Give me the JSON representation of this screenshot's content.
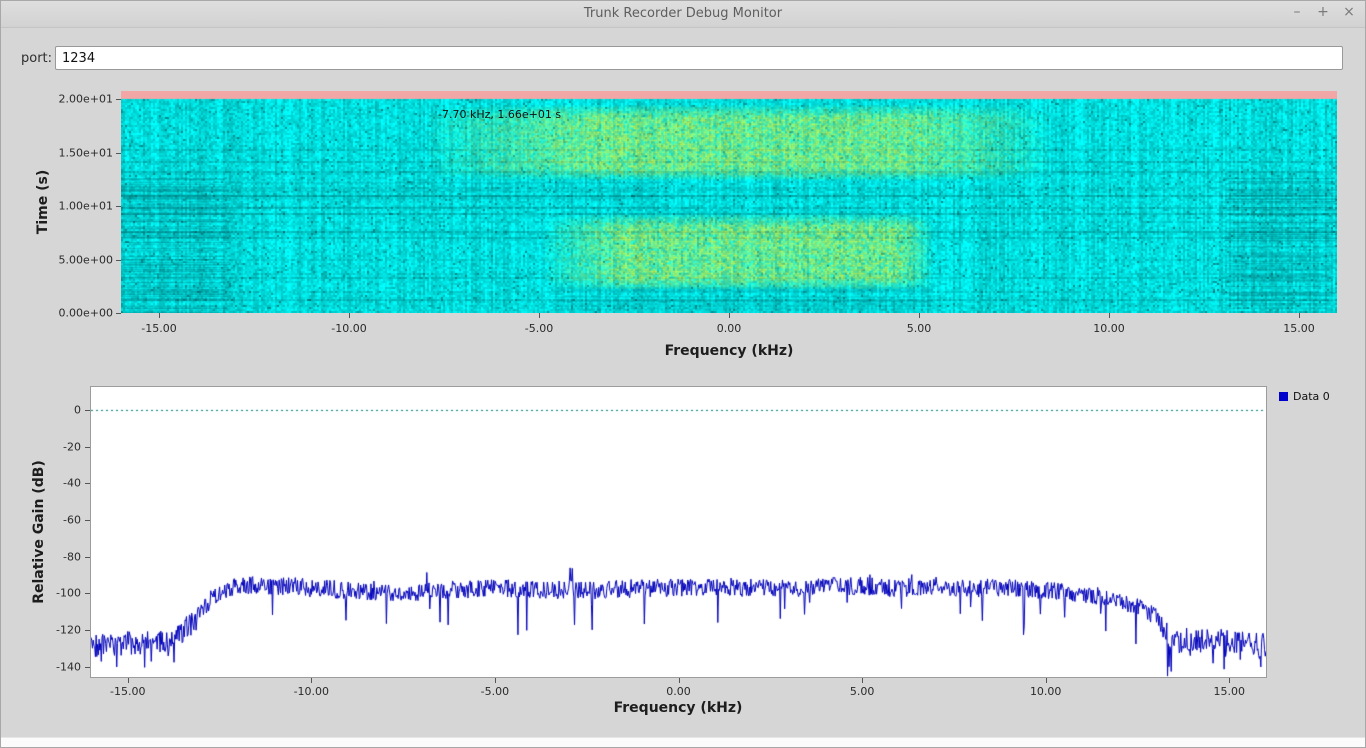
{
  "window": {
    "title": "Trunk Recorder Debug Monitor",
    "controls": {
      "minimize": "–",
      "maximize": "+",
      "close": "×"
    }
  },
  "toolbar": {
    "port_label": "port:",
    "port_value": "1234"
  },
  "colors": {
    "window_bg": "#d6d6d6",
    "spectrogram_base": "#00dcdc",
    "spectrogram_signal": "#f5f53c",
    "spectrogram_top_strip": "#f2a6a6",
    "spectrogram_dark": "#005a64",
    "trace": "#0000bb",
    "legend_swatch": "#0000cc",
    "zero_line": "#008080"
  },
  "chart_data": [
    {
      "id": "spectrogram",
      "type": "heatmap",
      "xlabel": "Frequency (kHz)",
      "ylabel": "Time (s)",
      "x_range": [
        -16,
        16
      ],
      "y_range": [
        0,
        20
      ],
      "x_ticks": [
        {
          "v": -15,
          "label": "-15.00"
        },
        {
          "v": -10,
          "label": "-10.00"
        },
        {
          "v": -5,
          "label": "-5.00"
        },
        {
          "v": 0,
          "label": "0.00"
        },
        {
          "v": 5,
          "label": "5.00"
        },
        {
          "v": 10,
          "label": "10.00"
        },
        {
          "v": 15,
          "label": "15.00"
        }
      ],
      "y_ticks": [
        {
          "v": 20,
          "label": "2.00e+01"
        },
        {
          "v": 15,
          "label": "1.50e+01"
        },
        {
          "v": 10,
          "label": "1.00e+01"
        },
        {
          "v": 5,
          "label": "5.00e+00"
        },
        {
          "v": 0,
          "label": "0.00e+00"
        }
      ],
      "annotation": "-7.70 kHz, 1.66e+01 s",
      "noise_seed": 1337,
      "top_strip_time": [
        19.6,
        20
      ],
      "signal_bands": [
        {
          "freq": [
            -8.2,
            8.6
          ],
          "freq_core": [
            -3.6,
            4.6
          ],
          "time": [
            12.6,
            19.4
          ],
          "intensity": 0.8
        },
        {
          "freq": [
            -5.0,
            5.4
          ],
          "freq_core": [
            -2.8,
            4.4
          ],
          "time": [
            2.3,
            9.2
          ],
          "intensity": 0.75
        }
      ],
      "dark_patches": [
        {
          "freq": [
            -16,
            -13.1
          ],
          "time": [
            0,
            12.6
          ],
          "intensity": 0.55
        },
        {
          "freq": [
            13.1,
            16
          ],
          "time": [
            0,
            12.6
          ],
          "intensity": 0.55
        },
        {
          "freq": [
            -13.1,
            -1.6
          ],
          "time": [
            9.8,
            12.5
          ],
          "intensity": 0.3
        },
        {
          "freq": [
            -4.6,
            5.4
          ],
          "time": [
            0.2,
            2.4
          ],
          "intensity": 0.3
        },
        {
          "freq": [
            -13.1,
            13.1
          ],
          "time": [
            0,
            1.5
          ],
          "intensity": 0.12
        }
      ]
    },
    {
      "id": "gain",
      "type": "line",
      "xlabel": "Frequency (kHz)",
      "ylabel": "Relative Gain (dB)",
      "x_range": [
        -16,
        16
      ],
      "y_range": [
        -145.5,
        12.5
      ],
      "x_ticks": [
        {
          "v": -15,
          "label": "-15.00"
        },
        {
          "v": -10,
          "label": "-10.00"
        },
        {
          "v": -5,
          "label": "-5.00"
        },
        {
          "v": 0,
          "label": "0.00"
        },
        {
          "v": 5,
          "label": "5.00"
        },
        {
          "v": 10,
          "label": "10.00"
        },
        {
          "v": 15,
          "label": "15.00"
        }
      ],
      "y_ticks": [
        {
          "v": 0,
          "label": "0"
        },
        {
          "v": -20,
          "label": "-20"
        },
        {
          "v": -40,
          "label": "-40"
        },
        {
          "v": -60,
          "label": "-60"
        },
        {
          "v": -80,
          "label": "-80"
        },
        {
          "v": -100,
          "label": "-100"
        },
        {
          "v": -120,
          "label": "-120"
        },
        {
          "v": -140,
          "label": "-140"
        }
      ],
      "legend": [
        {
          "label": "Data 0",
          "color": "#0000cc"
        }
      ],
      "zero_line": {
        "value": 0,
        "style": "dotted",
        "color": "#008080"
      },
      "series": [
        {
          "name": "Data 0",
          "color": "#0000bb",
          "seed": 2024,
          "noise_amp_passband": 5,
          "noise_amp_stopband": 6.5,
          "profile": [
            [
              -16,
              -128
            ],
            [
              -15.5,
              -128
            ],
            [
              -15,
              -127
            ],
            [
              -14.5,
              -127
            ],
            [
              -14,
              -126
            ],
            [
              -13.6,
              -123
            ],
            [
              -13.3,
              -117
            ],
            [
              -13,
              -110
            ],
            [
              -12.7,
              -102
            ],
            [
              -12.3,
              -98
            ],
            [
              -12,
              -96
            ],
            [
              -11.5,
              -95
            ],
            [
              -11,
              -96
            ],
            [
              -10.5,
              -96
            ],
            [
              -10,
              -97
            ],
            [
              -9,
              -98
            ],
            [
              -8,
              -99
            ],
            [
              -7,
              -99
            ],
            [
              -6,
              -98
            ],
            [
              -5,
              -97
            ],
            [
              -4,
              -98
            ],
            [
              -3,
              -98
            ],
            [
              -2,
              -98
            ],
            [
              -1,
              -97
            ],
            [
              0,
              -97
            ],
            [
              1,
              -96
            ],
            [
              2,
              -97
            ],
            [
              3,
              -97
            ],
            [
              4,
              -96
            ],
            [
              5,
              -96
            ],
            [
              6,
              -97
            ],
            [
              7,
              -96
            ],
            [
              8,
              -97
            ],
            [
              9,
              -97
            ],
            [
              10,
              -98
            ],
            [
              10.5,
              -99
            ],
            [
              11,
              -100
            ],
            [
              11.5,
              -102
            ],
            [
              12,
              -104
            ],
            [
              12.4,
              -106
            ],
            [
              12.8,
              -110
            ],
            [
              13.1,
              -116
            ],
            [
              13.4,
              -124
            ],
            [
              13.7,
              -127
            ],
            [
              14,
              -126
            ],
            [
              14.5,
              -125
            ],
            [
              15,
              -126
            ],
            [
              15.5,
              -127
            ],
            [
              16,
              -128
            ]
          ],
          "deep_dips": [
            [
              13.32,
              -145
            ],
            [
              -15.3,
              -140
            ],
            [
              -15.72,
              -137
            ],
            [
              -14.35,
              -137
            ],
            [
              -13.9,
              -134
            ],
            [
              14.55,
              -138
            ],
            [
              15.3,
              -136
            ],
            [
              15.85,
              -140
            ]
          ]
        }
      ]
    }
  ]
}
